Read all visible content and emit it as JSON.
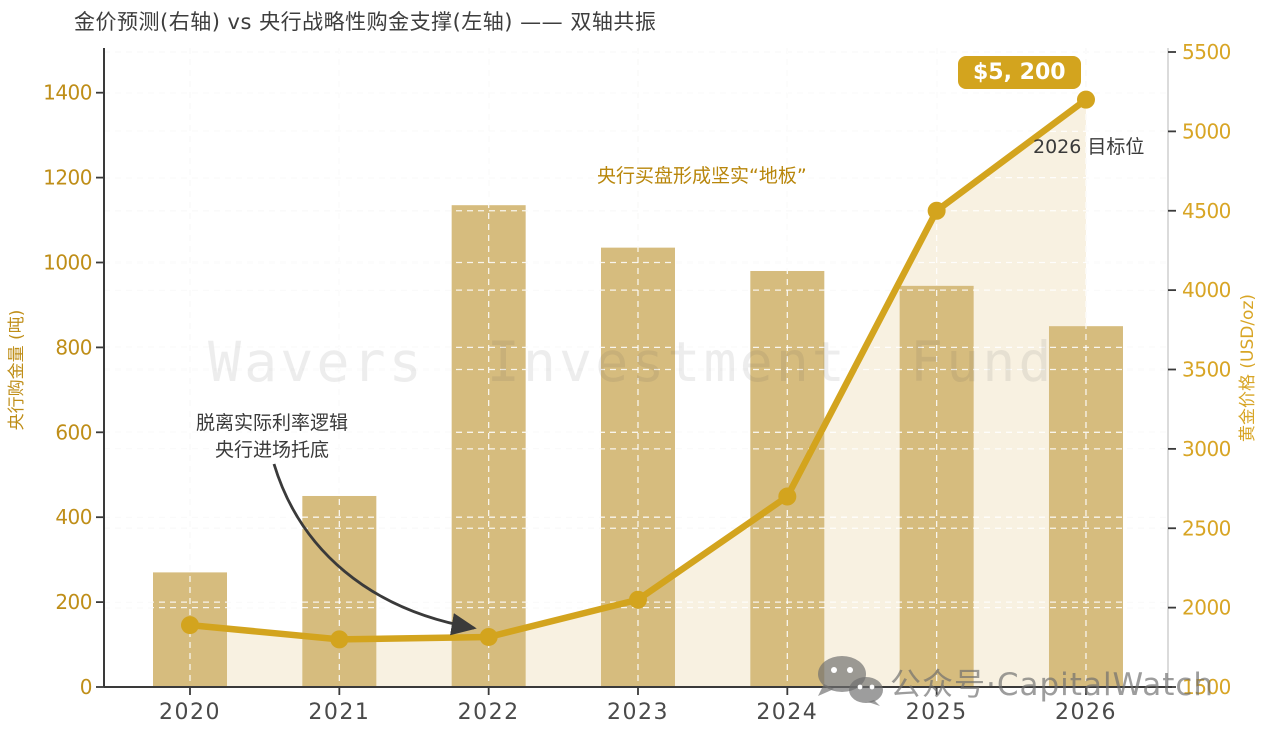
{
  "header": {
    "title": "金价预测(右轴) vs 央行战略性购金支撑(左轴) —— 双轴共振"
  },
  "watermark": "Wavers Investment Fund",
  "credit": {
    "icon": "wechat-icon",
    "label": "公众号·CapitalWatch"
  },
  "annotations": {
    "floor_note": "央行买盘形成坚实“地板”",
    "rate_note": "脱离实际利率逻辑\n央行进场托底",
    "target_badge": "$5, 200",
    "target_label": "2026 目标位"
  },
  "colors": {
    "bar": "#d6bc7e",
    "area_fill": "#f8f1e1",
    "line": "#d3a41e",
    "marker": "#d3a41e",
    "left_tick_label": "#bf8e18",
    "right_tick_label": "#d8a525",
    "x_tick_label": "#4a4a4a",
    "spine_dark": "#3a3a3a",
    "spine_light": "#cfcfcf",
    "grid_gray": "#e8e8e6",
    "grid_white": "rgba(255,255,255,0.85)",
    "arrow": "#3a3a3a",
    "badge_bg": "#d3a41e",
    "badge_text": "#ffffff"
  },
  "chart_data": {
    "type": "combo-bar-line-dual-axis",
    "title": "金价预测(右轴) vs 央行战略性购金支撑(左轴) —— 双轴共振",
    "categories": [
      "2020",
      "2021",
      "2022",
      "2023",
      "2024",
      "2025",
      "2026"
    ],
    "series": [
      {
        "name": "央行战略性购金支撑",
        "chart": "bar",
        "axis": "left",
        "values": [
          270,
          450,
          1135,
          1035,
          980,
          945,
          850
        ]
      },
      {
        "name": "金价预测",
        "chart": "line",
        "axis": "right",
        "values": [
          1890,
          1800,
          1815,
          2050,
          2700,
          4500,
          5200
        ]
      }
    ],
    "left_axis": {
      "title": "央行购金量 (吨)",
      "ticks": [
        0,
        200,
        400,
        600,
        800,
        1000,
        1200,
        1400
      ],
      "range": [
        0,
        1505
      ]
    },
    "right_axis": {
      "title": "黄金价格 (USD/oz)",
      "ticks": [
        1500,
        2000,
        2500,
        3000,
        3500,
        4000,
        4500,
        5000,
        5500
      ],
      "range": [
        1500,
        5525
      ]
    },
    "grid": "dashed, horizontal for both axes + vertical per category",
    "legend": "none",
    "annotation_target_year": "2026",
    "annotation_target_value": 5200
  }
}
